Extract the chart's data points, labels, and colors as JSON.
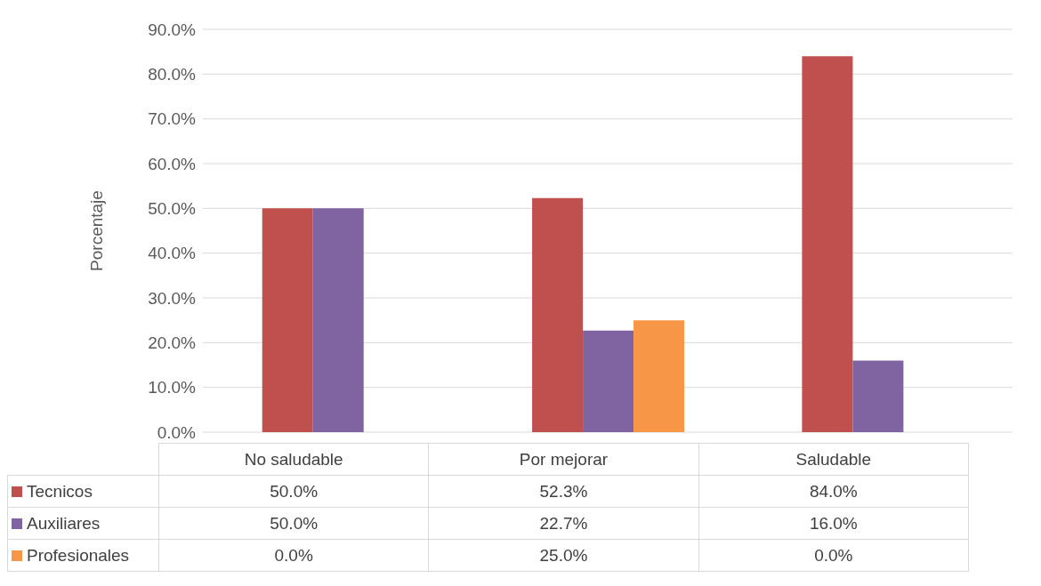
{
  "chart_data": {
    "type": "bar",
    "ylabel": "Porcentaje",
    "categories": [
      "No saludable",
      "Por mejorar",
      "Saludable"
    ],
    "series": [
      {
        "name": "Tecnicos",
        "color": "#c0504d",
        "values": [
          50.0,
          52.3,
          84.0
        ],
        "value_labels": [
          "50.0%",
          "52.3%",
          "84.0%"
        ]
      },
      {
        "name": "Auxiliares",
        "color": "#8064a2",
        "values": [
          50.0,
          22.7,
          16.0
        ],
        "value_labels": [
          "50.0%",
          "22.7%",
          "16.0%"
        ]
      },
      {
        "name": "Profesionales",
        "color": "#f79646",
        "values": [
          0.0,
          25.0,
          0.0
        ],
        "value_labels": [
          "0.0%",
          "25.0%",
          "0.0%"
        ]
      }
    ],
    "ylim": [
      0,
      90
    ],
    "yticks": [
      {
        "value": 0,
        "label": "0.0%"
      },
      {
        "value": 10,
        "label": "10.0%"
      },
      {
        "value": 20,
        "label": "20.0%"
      },
      {
        "value": 30,
        "label": "30.0%"
      },
      {
        "value": 40,
        "label": "40.0%"
      },
      {
        "value": 50,
        "label": "50.0%"
      },
      {
        "value": 60,
        "label": "60.0%"
      },
      {
        "value": 70,
        "label": "70.0%"
      },
      {
        "value": 80,
        "label": "80.0%"
      },
      {
        "value": 90,
        "label": "90.0%"
      }
    ],
    "grid": "y",
    "legend": "bottom"
  }
}
